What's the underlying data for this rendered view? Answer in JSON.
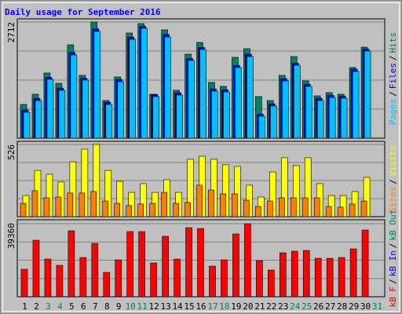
{
  "title": "Daily usage for September 2016",
  "chart_data": [
    {
      "type": "bar",
      "ylim": [
        0,
        2712
      ],
      "yticks": [
        2712
      ],
      "separator": "/",
      "series": [
        {
          "name": "Hits",
          "color": "#00805c",
          "values": [
            788,
            1026,
            1521,
            1282,
            2180,
            1466,
            2712,
            879,
            1429,
            2455,
            2675,
            1026,
            2528,
            1118,
            1960,
            2235,
            1301,
            1209,
            1887,
            2088,
            971,
            879,
            1466,
            1905,
            1337,
            989,
            1063,
            1026,
            1649,
            2125,
            null
          ]
        },
        {
          "name": "Files",
          "color": "#0000ff",
          "values": [
            660,
            930,
            1420,
            1170,
            2000,
            1400,
            2550,
            840,
            1370,
            2360,
            2610,
            1020,
            2420,
            1060,
            1860,
            2120,
            1150,
            1130,
            1700,
            1960,
            560,
            800,
            1390,
            1750,
            1260,
            930,
            1000,
            980,
            1610,
            2080,
            null
          ]
        },
        {
          "name": "Pages",
          "color": "#00c0ff",
          "values": [
            605,
            879,
            1374,
            1118,
            1942,
            1356,
            2492,
            788,
            1319,
            2308,
            2565,
            971,
            2363,
            1008,
            1814,
            2070,
            1099,
            1081,
            1649,
            1905,
            513,
            751,
            1337,
            1704,
            1209,
            879,
            953,
            934,
            1557,
            2034,
            null
          ]
        }
      ]
    },
    {
      "type": "bar",
      "ylim": [
        0,
        526
      ],
      "yticks": [
        526
      ],
      "separator": "/",
      "series": [
        {
          "name": "Visits",
          "color": "#ffff00",
          "values": [
            154,
            337,
            309,
            252,
            400,
            492,
            526,
            337,
            257,
            177,
            240,
            177,
            269,
            177,
            418,
            440,
            418,
            378,
            366,
            229,
            143,
            326,
            429,
            372,
            429,
            240,
            154,
            154,
            183,
            286,
            null
          ]
        },
        {
          "name": "Sites",
          "color": "#ff8000",
          "values": [
            97,
            189,
            137,
            143,
            172,
            172,
            183,
            114,
            97,
            80,
            92,
            97,
            177,
            97,
            103,
            229,
            194,
            166,
            166,
            120,
            74,
            114,
            137,
            137,
            137,
            137,
            74,
            69,
            92,
            114,
            null
          ]
        }
      ]
    },
    {
      "type": "bar",
      "ylim": [
        0,
        39360
      ],
      "yticks": [
        39360
      ],
      "separator": "/",
      "categories": [
        1,
        2,
        3,
        4,
        5,
        6,
        7,
        8,
        9,
        10,
        11,
        12,
        13,
        14,
        15,
        16,
        17,
        18,
        19,
        20,
        21,
        22,
        23,
        24,
        25,
        26,
        27,
        28,
        29,
        30,
        31
      ],
      "weekend": [
        3,
        4,
        10,
        11,
        17,
        18,
        24,
        25,
        31
      ],
      "weekend_color": "#00805c",
      "series": [
        {
          "name": "kB F",
          "color": "#ff0000",
          "values": [
            14805,
            30456,
            20304,
            16920,
            35532,
            21150,
            28764,
            13113,
            19881,
            35109,
            35109,
            18189,
            32571,
            20304,
            37224,
            36801,
            16497,
            19881,
            33840,
            39360,
            19458,
            14382,
            23688,
            24534,
            24957,
            20727,
            20727,
            21150,
            25803,
            35955,
            null
          ]
        },
        {
          "name": "kB In",
          "color": "#0000ff"
        },
        {
          "name": "kB Out",
          "color": "#00805c"
        }
      ]
    }
  ]
}
